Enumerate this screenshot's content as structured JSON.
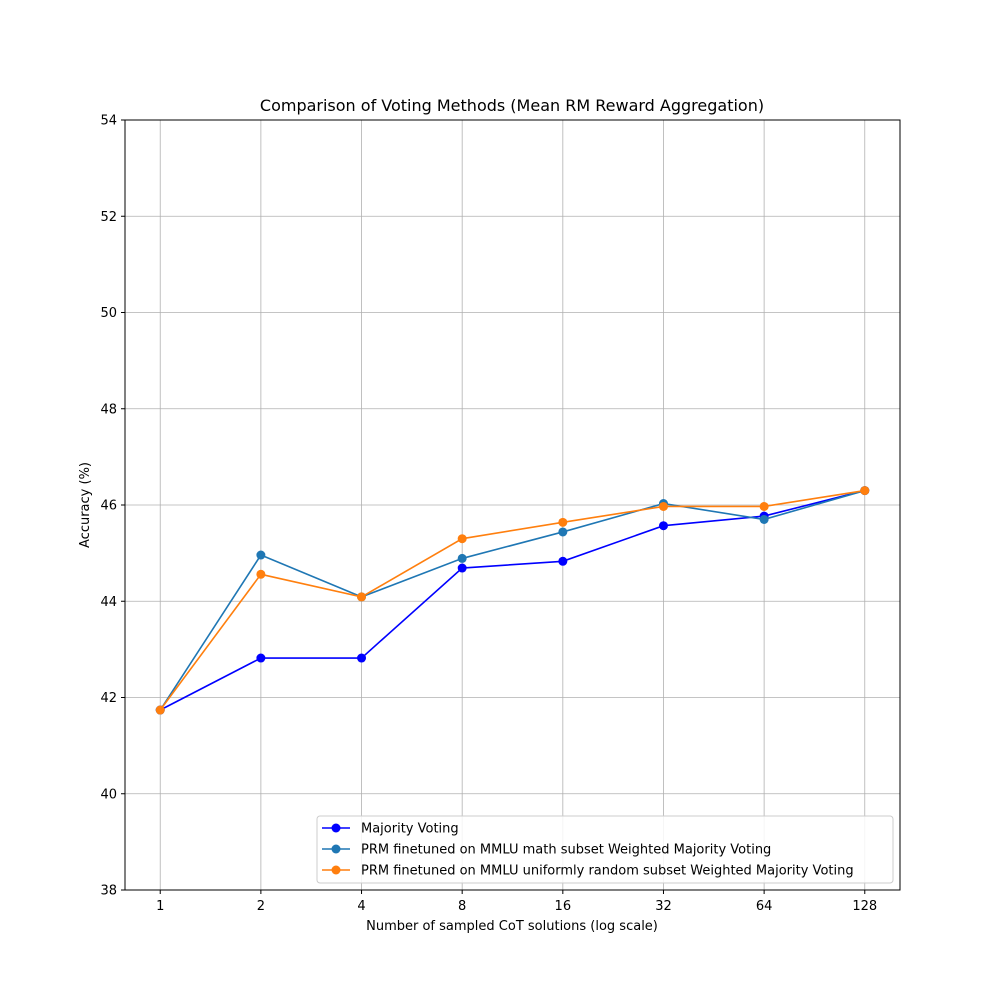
{
  "chart_data": {
    "type": "line",
    "title": "Comparison of Voting Methods (Mean RM Reward Aggregation)",
    "xlabel": "Number of sampled CoT solutions (log scale)",
    "ylabel": "Accuracy (%)",
    "x": [
      1,
      2,
      4,
      8,
      16,
      32,
      64,
      128
    ],
    "x_tick_labels": [
      "1",
      "2",
      "4",
      "8",
      "16",
      "32",
      "64",
      "128"
    ],
    "x_scale": "log2",
    "ylim": [
      38,
      54
    ],
    "y_ticks": [
      38,
      40,
      42,
      44,
      46,
      48,
      50,
      52,
      54
    ],
    "grid": true,
    "legend_position": "lower-right",
    "series": [
      {
        "name": "Majority Voting",
        "color": "#0000ff",
        "values": [
          41.74,
          42.82,
          42.82,
          44.69,
          44.83,
          45.57,
          45.77,
          46.3
        ]
      },
      {
        "name": "PRM finetuned on MMLU math subset Weighted Majority Voting",
        "color": "#1f77b4",
        "values": [
          41.74,
          44.96,
          44.09,
          44.89,
          45.44,
          46.03,
          45.7,
          46.3
        ]
      },
      {
        "name": "PRM finetuned on MMLU uniformly random subset Weighted Majority Voting",
        "color": "#ff7f0e",
        "values": [
          41.74,
          44.56,
          44.09,
          45.3,
          45.64,
          45.97,
          45.97,
          46.3
        ]
      }
    ]
  }
}
